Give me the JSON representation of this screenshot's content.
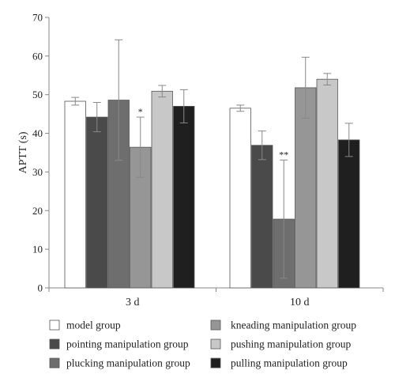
{
  "chart_data": {
    "type": "bar",
    "title": "",
    "xlabel": "",
    "ylabel": "APTT (s)",
    "ylim": [
      0,
      70
    ],
    "yticks": [
      0,
      10,
      20,
      30,
      40,
      50,
      60,
      70
    ],
    "grid": false,
    "legend_position": "bottom",
    "categories": [
      "3 d",
      "10 d"
    ],
    "series": [
      {
        "name": "model group",
        "color": "#ffffff",
        "values": [
          48.3,
          46.5
        ],
        "errors": [
          1.0,
          0.8
        ],
        "significance": [
          "",
          ""
        ]
      },
      {
        "name": "pointing manipulation group",
        "color": "#4a4a4a",
        "values": [
          44.2,
          36.9
        ],
        "errors": [
          3.8,
          3.7
        ],
        "significance": [
          "",
          ""
        ]
      },
      {
        "name": "plucking manipulation group",
        "color": "#6e6e6e",
        "values": [
          48.6,
          17.8
        ],
        "errors": [
          15.6,
          15.3
        ],
        "significance": [
          "",
          "**"
        ]
      },
      {
        "name": "kneading manipulation group",
        "color": "#969696",
        "values": [
          36.4,
          51.8
        ],
        "errors": [
          7.8,
          7.9
        ],
        "significance": [
          "*",
          ""
        ]
      },
      {
        "name": "pushing manipulation group",
        "color": "#c8c8c8",
        "values": [
          50.9,
          54.0
        ],
        "errors": [
          1.5,
          1.5
        ],
        "significance": [
          "",
          ""
        ]
      },
      {
        "name": "pulling manipulation group",
        "color": "#1f1f1f",
        "values": [
          47.0,
          38.3
        ],
        "errors": [
          4.3,
          4.3
        ],
        "significance": [
          "",
          ""
        ]
      }
    ]
  }
}
